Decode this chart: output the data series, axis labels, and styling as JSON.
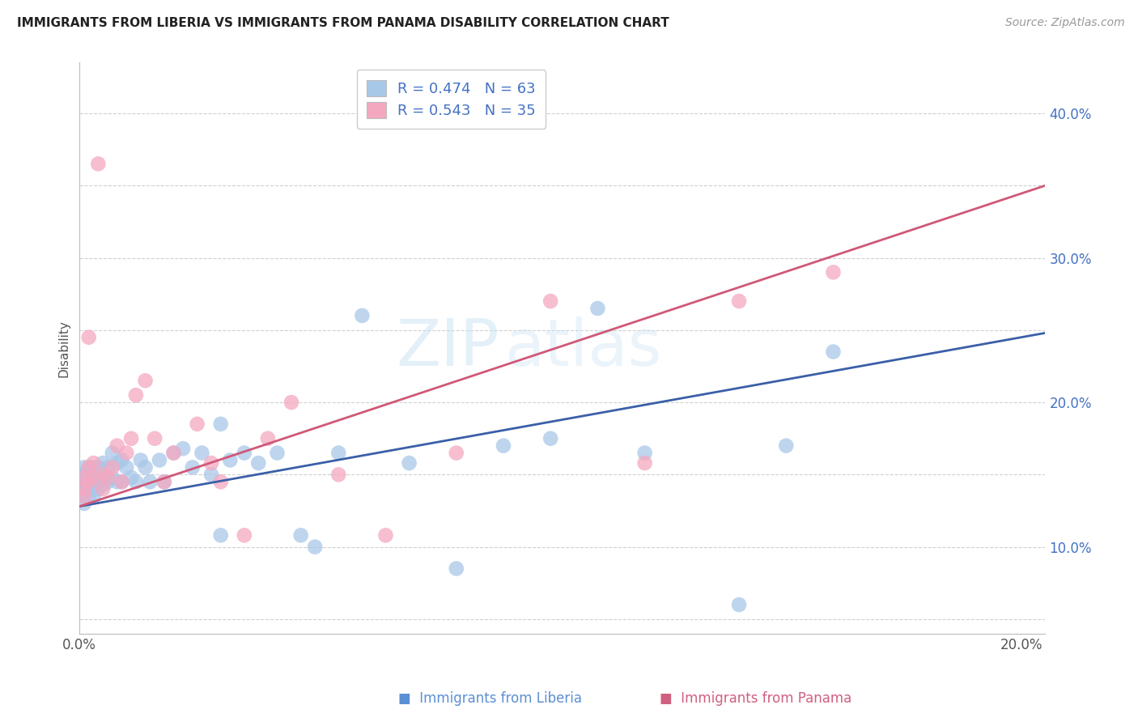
{
  "title": "IMMIGRANTS FROM LIBERIA VS IMMIGRANTS FROM PANAMA DISABILITY CORRELATION CHART",
  "source": "Source: ZipAtlas.com",
  "ylabel": "Disability",
  "xlim": [
    0.0,
    0.205
  ],
  "ylim": [
    0.04,
    0.435
  ],
  "liberia_R": 0.474,
  "liberia_N": 63,
  "panama_R": 0.543,
  "panama_N": 35,
  "liberia_color": "#a8c8e8",
  "panama_color": "#f4a8c0",
  "liberia_line_color": "#3a5fa8",
  "panama_line_color": "#d05878",
  "background_color": "#ffffff",
  "grid_color": "#d0d0d0",
  "liberia_x": [
    0.001,
    0.001,
    0.001,
    0.001,
    0.001,
    0.001,
    0.001,
    0.001,
    0.002,
    0.002,
    0.002,
    0.002,
    0.002,
    0.003,
    0.003,
    0.003,
    0.003,
    0.004,
    0.004,
    0.004,
    0.005,
    0.005,
    0.005,
    0.006,
    0.006,
    0.007,
    0.007,
    0.008,
    0.008,
    0.009,
    0.009,
    0.01,
    0.011,
    0.012,
    0.013,
    0.014,
    0.015,
    0.017,
    0.018,
    0.02,
    0.022,
    0.024,
    0.026,
    0.028,
    0.03,
    0.032,
    0.035,
    0.038,
    0.042,
    0.047,
    0.055,
    0.06,
    0.07,
    0.08,
    0.09,
    0.1,
    0.11,
    0.12,
    0.14,
    0.15,
    0.03,
    0.05,
    0.16
  ],
  "liberia_y": [
    0.155,
    0.15,
    0.145,
    0.14,
    0.135,
    0.13,
    0.15,
    0.145,
    0.155,
    0.145,
    0.14,
    0.135,
    0.148,
    0.155,
    0.145,
    0.14,
    0.135,
    0.155,
    0.145,
    0.14,
    0.158,
    0.15,
    0.143,
    0.155,
    0.145,
    0.165,
    0.148,
    0.158,
    0.145,
    0.16,
    0.145,
    0.155,
    0.148,
    0.145,
    0.16,
    0.155,
    0.145,
    0.16,
    0.145,
    0.165,
    0.168,
    0.155,
    0.165,
    0.15,
    0.108,
    0.16,
    0.165,
    0.158,
    0.165,
    0.108,
    0.165,
    0.26,
    0.158,
    0.085,
    0.17,
    0.175,
    0.265,
    0.165,
    0.06,
    0.17,
    0.185,
    0.1,
    0.235
  ],
  "panama_x": [
    0.001,
    0.001,
    0.001,
    0.002,
    0.002,
    0.003,
    0.003,
    0.004,
    0.005,
    0.005,
    0.006,
    0.007,
    0.008,
    0.009,
    0.01,
    0.011,
    0.012,
    0.014,
    0.016,
    0.018,
    0.02,
    0.025,
    0.028,
    0.03,
    0.035,
    0.04,
    0.045,
    0.055,
    0.065,
    0.08,
    0.1,
    0.12,
    0.14,
    0.16,
    0.002
  ],
  "panama_y": [
    0.148,
    0.14,
    0.135,
    0.155,
    0.145,
    0.158,
    0.148,
    0.365,
    0.15,
    0.14,
    0.148,
    0.155,
    0.17,
    0.145,
    0.165,
    0.175,
    0.205,
    0.215,
    0.175,
    0.145,
    0.165,
    0.185,
    0.158,
    0.145,
    0.108,
    0.175,
    0.2,
    0.15,
    0.108,
    0.165,
    0.27,
    0.158,
    0.27,
    0.29,
    0.245
  ],
  "liberia_line_x": [
    0.0,
    0.205
  ],
  "liberia_line_y": [
    0.128,
    0.248
  ],
  "panama_line_x": [
    0.0,
    0.205
  ],
  "panama_line_y": [
    0.128,
    0.35
  ]
}
